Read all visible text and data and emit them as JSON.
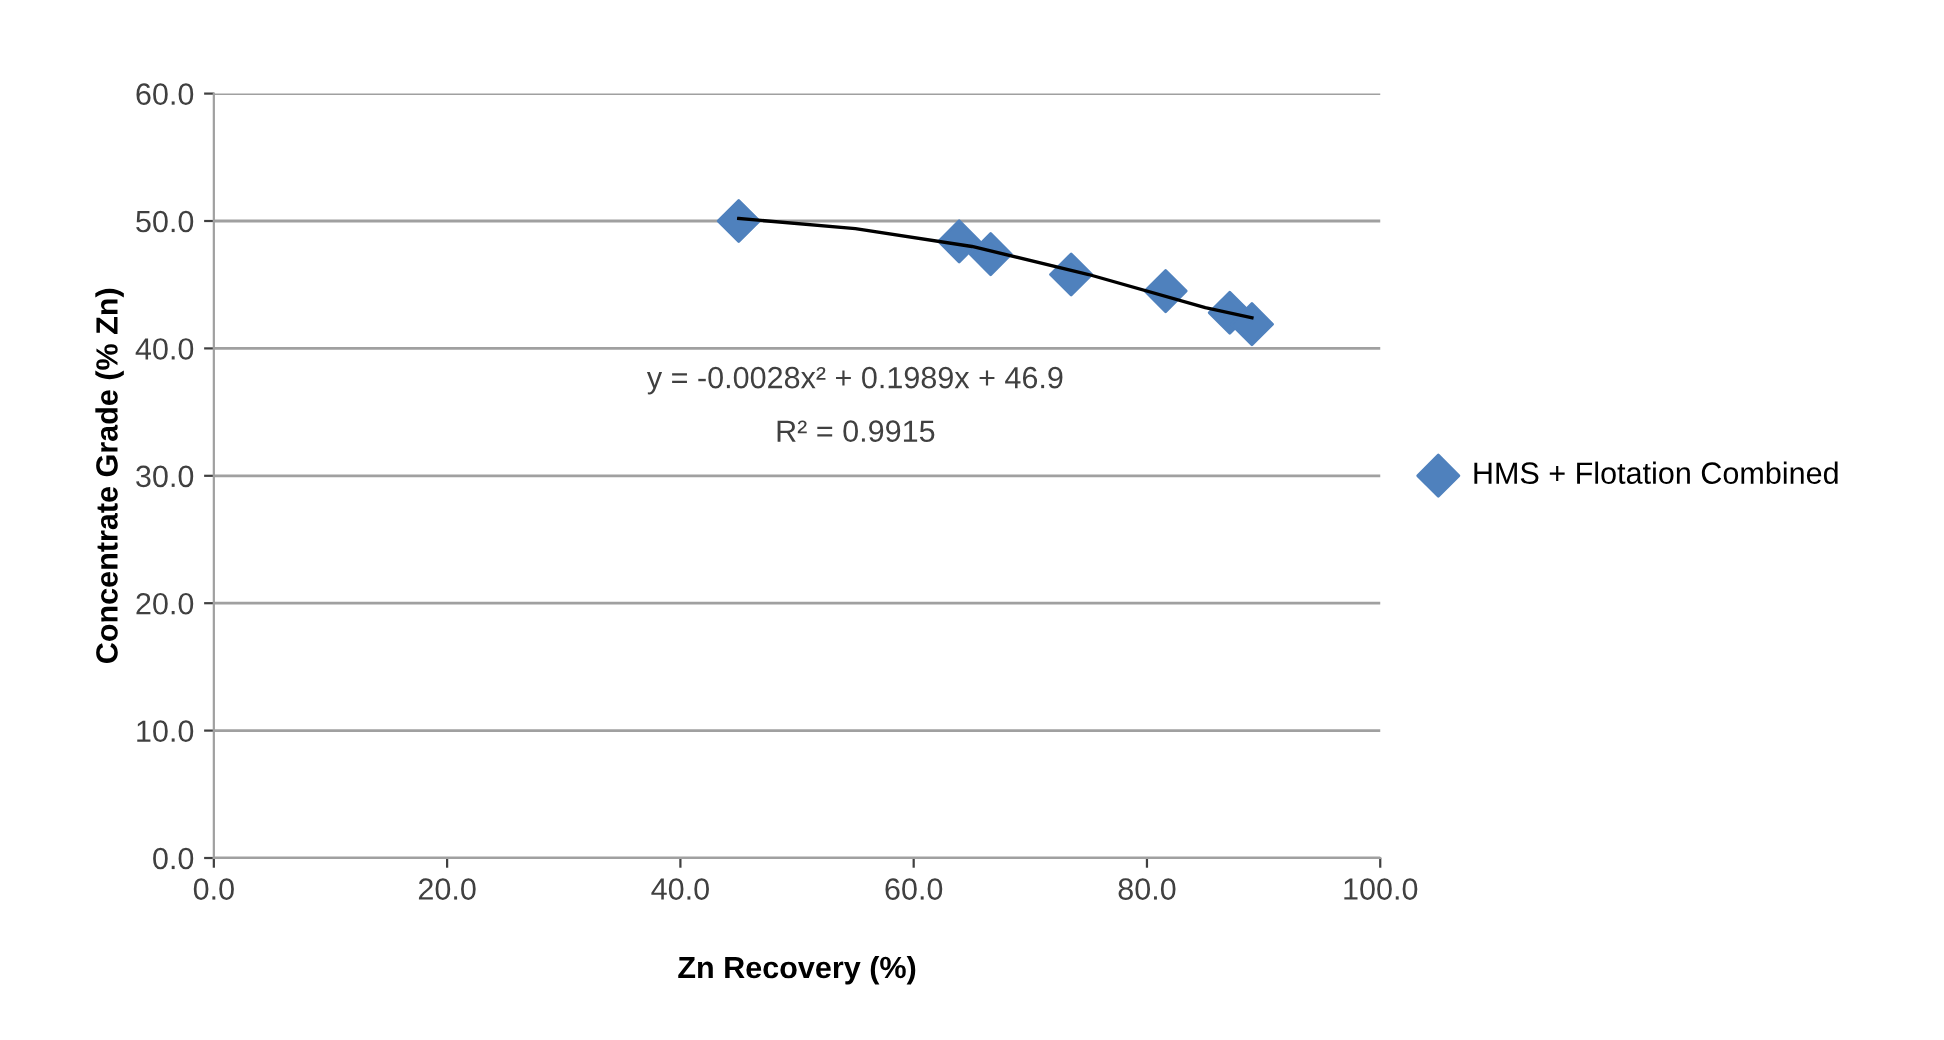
{
  "chart_data": {
    "type": "scatter",
    "xlabel": "Zn Recovery (%)",
    "ylabel": "Concentrate Grade (% Zn)",
    "xlim": [
      0,
      100
    ],
    "xticks": [
      {
        "value": 0,
        "label": "0.0"
      },
      {
        "value": 20,
        "label": "20.0"
      },
      {
        "value": 40,
        "label": "40.0"
      },
      {
        "value": 60,
        "label": "60.0"
      },
      {
        "value": 80,
        "label": "80.0"
      },
      {
        "value": 100,
        "label": "100.0"
      }
    ],
    "ylim": [
      0,
      60
    ],
    "yticks": [
      {
        "value": 0,
        "label": "0.0"
      },
      {
        "value": 10,
        "label": "10.0"
      },
      {
        "value": 20,
        "label": "20.0"
      },
      {
        "value": 30,
        "label": "30.0"
      },
      {
        "value": 40,
        "label": "40.0"
      },
      {
        "value": 50,
        "label": "50.0"
      },
      {
        "value": 60,
        "label": "60.0"
      }
    ],
    "grid": "y",
    "legend": "right",
    "marker": "diamond",
    "series": [
      {
        "name": "HMS + Flotation Combined",
        "color": "#4f81bd",
        "x": [
          45.0,
          63.9,
          66.6,
          73.5,
          81.6,
          87.1,
          89.0
        ],
        "values": [
          50.0,
          48.4,
          47.4,
          45.8,
          44.5,
          42.8,
          41.9
        ]
      },
      {
        "type": "line",
        "color": "#000000",
        "marker": "none",
        "x": [
          45,
          55,
          65,
          75,
          85,
          89
        ],
        "values": [
          50.2,
          49.4,
          48.0,
          45.8,
          43.2,
          42.4
        ]
      }
    ],
    "annotations": [
      "y = -0.0028x² + 0.1989x + 46.9",
      "R² = 0.9915"
    ]
  }
}
